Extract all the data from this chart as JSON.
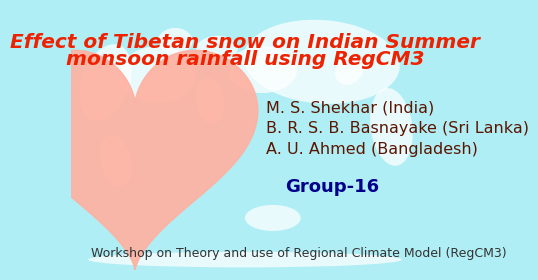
{
  "title_line1": "Effect of Tibetan snow on Indian Summer",
  "title_line2": "monsoon rainfall using RegCM3",
  "title_color": "#EE2200",
  "author1": "M. S. Shekhar (India)",
  "author2": "B. R. S. B. Basnayake (Sri Lanka)",
  "author3": "A. U. Ahmed (Bangladesh)",
  "author_color": "#5B1500",
  "group_text": "Group-16",
  "group_color": "#00008B",
  "footer": "Workshop on Theory and use of Regional Climate Model (RegCM3)",
  "footer_color": "#333333",
  "bg_color": "#B0EEF5",
  "border_color": "#F09090",
  "title_fontsize": 14.5,
  "author_fontsize": 11.5,
  "group_fontsize": 13,
  "footer_fontsize": 9,
  "heart_color": "#FFB0A0",
  "continent_alpha": 0.72,
  "continents": [
    [
      0.72,
      0.8,
      0.45,
      0.32,
      -8
    ],
    [
      0.1,
      0.72,
      0.14,
      0.3,
      -12
    ],
    [
      0.13,
      0.42,
      0.09,
      0.2,
      8
    ],
    [
      0.3,
      0.88,
      0.1,
      0.1,
      0
    ],
    [
      0.42,
      0.85,
      0.12,
      0.1,
      5
    ],
    [
      0.25,
      0.75,
      0.22,
      0.22,
      -5
    ],
    [
      0.55,
      0.77,
      0.2,
      0.18,
      0
    ],
    [
      0.8,
      0.77,
      0.08,
      0.12,
      -15
    ],
    [
      0.4,
      0.65,
      0.08,
      0.18,
      5
    ],
    [
      0.58,
      0.2,
      0.16,
      0.1,
      0
    ],
    [
      0.92,
      0.55,
      0.12,
      0.3,
      5
    ],
    [
      0.5,
      0.04,
      0.9,
      0.06,
      0
    ]
  ]
}
